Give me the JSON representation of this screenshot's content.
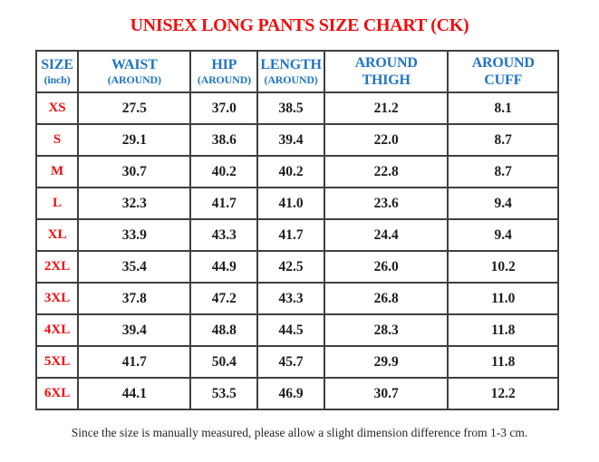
{
  "title": {
    "text": "UNISEX LONG PANTS SIZE CHART (CK)",
    "color": "#f20d0d"
  },
  "colors": {
    "header_blue": "#2075c4",
    "size_red": "#f20d0d",
    "value_black": "#1d1d1f",
    "grid_line": "#3f3f3f"
  },
  "table": {
    "columns": [
      {
        "id": "size",
        "line1": "SIZE",
        "line2": "(inch)"
      },
      {
        "id": "waist",
        "line1": "WAIST",
        "line2": "(AROUND)"
      },
      {
        "id": "hip",
        "line1": "HIP",
        "line2": "(AROUND)"
      },
      {
        "id": "length",
        "line1": "LENGTH",
        "line2": "(AROUND)"
      },
      {
        "id": "thigh",
        "line1": "AROUND",
        "line2": "THIGH"
      },
      {
        "id": "cuff",
        "line1": "AROUND",
        "line2": "CUFF"
      }
    ],
    "rows": [
      {
        "size": "XS",
        "waist": "27.5",
        "hip": "37.0",
        "length": "38.5",
        "thigh": "21.2",
        "cuff": "8.1"
      },
      {
        "size": "S",
        "waist": "29.1",
        "hip": "38.6",
        "length": "39.4",
        "thigh": "22.0",
        "cuff": "8.7"
      },
      {
        "size": "M",
        "waist": "30.7",
        "hip": "40.2",
        "length": "40.2",
        "thigh": "22.8",
        "cuff": "8.7"
      },
      {
        "size": "L",
        "waist": "32.3",
        "hip": "41.7",
        "length": "41.0",
        "thigh": "23.6",
        "cuff": "9.4"
      },
      {
        "size": "XL",
        "waist": "33.9",
        "hip": "43.3",
        "length": "41.7",
        "thigh": "24.4",
        "cuff": "9.4"
      },
      {
        "size": "2XL",
        "waist": "35.4",
        "hip": "44.9",
        "length": "42.5",
        "thigh": "26.0",
        "cuff": "10.2"
      },
      {
        "size": "3XL",
        "waist": "37.8",
        "hip": "47.2",
        "length": "43.3",
        "thigh": "26.8",
        "cuff": "11.0"
      },
      {
        "size": "4XL",
        "waist": "39.4",
        "hip": "48.8",
        "length": "44.5",
        "thigh": "28.3",
        "cuff": "11.8"
      },
      {
        "size": "5XL",
        "waist": "41.7",
        "hip": "50.4",
        "length": "45.7",
        "thigh": "29.9",
        "cuff": "11.8"
      },
      {
        "size": "6XL",
        "waist": "44.1",
        "hip": "53.5",
        "length": "46.9",
        "thigh": "30.7",
        "cuff": "12.2"
      }
    ]
  },
  "footer": {
    "note": "Since the size is manually measured, please allow a slight dimension difference from 1-3 cm."
  },
  "chart_data": {
    "type": "table",
    "title": "UNISEX LONG PANTS SIZE CHART (CK)",
    "unit": "inch",
    "columns": [
      "SIZE (inch)",
      "WAIST (AROUND)",
      "HIP (AROUND)",
      "LENGTH (AROUND)",
      "AROUND THIGH",
      "AROUND CUFF"
    ],
    "rows": [
      [
        "XS",
        27.5,
        37.0,
        38.5,
        21.2,
        8.1
      ],
      [
        "S",
        29.1,
        38.6,
        39.4,
        22.0,
        8.7
      ],
      [
        "M",
        30.7,
        40.2,
        40.2,
        22.8,
        8.7
      ],
      [
        "L",
        32.3,
        41.7,
        41.0,
        23.6,
        9.4
      ],
      [
        "XL",
        33.9,
        43.3,
        41.7,
        24.4,
        9.4
      ],
      [
        "2XL",
        35.4,
        44.9,
        42.5,
        26.0,
        10.2
      ],
      [
        "3XL",
        37.8,
        47.2,
        43.3,
        26.8,
        11.0
      ],
      [
        "4XL",
        39.4,
        48.8,
        44.5,
        28.3,
        11.8
      ],
      [
        "5XL",
        41.7,
        50.4,
        45.7,
        29.9,
        11.8
      ],
      [
        "6XL",
        44.1,
        53.5,
        46.9,
        30.7,
        12.2
      ]
    ],
    "note": "Since the size is manually measured, please allow a slight dimension difference from 1-3 cm."
  }
}
